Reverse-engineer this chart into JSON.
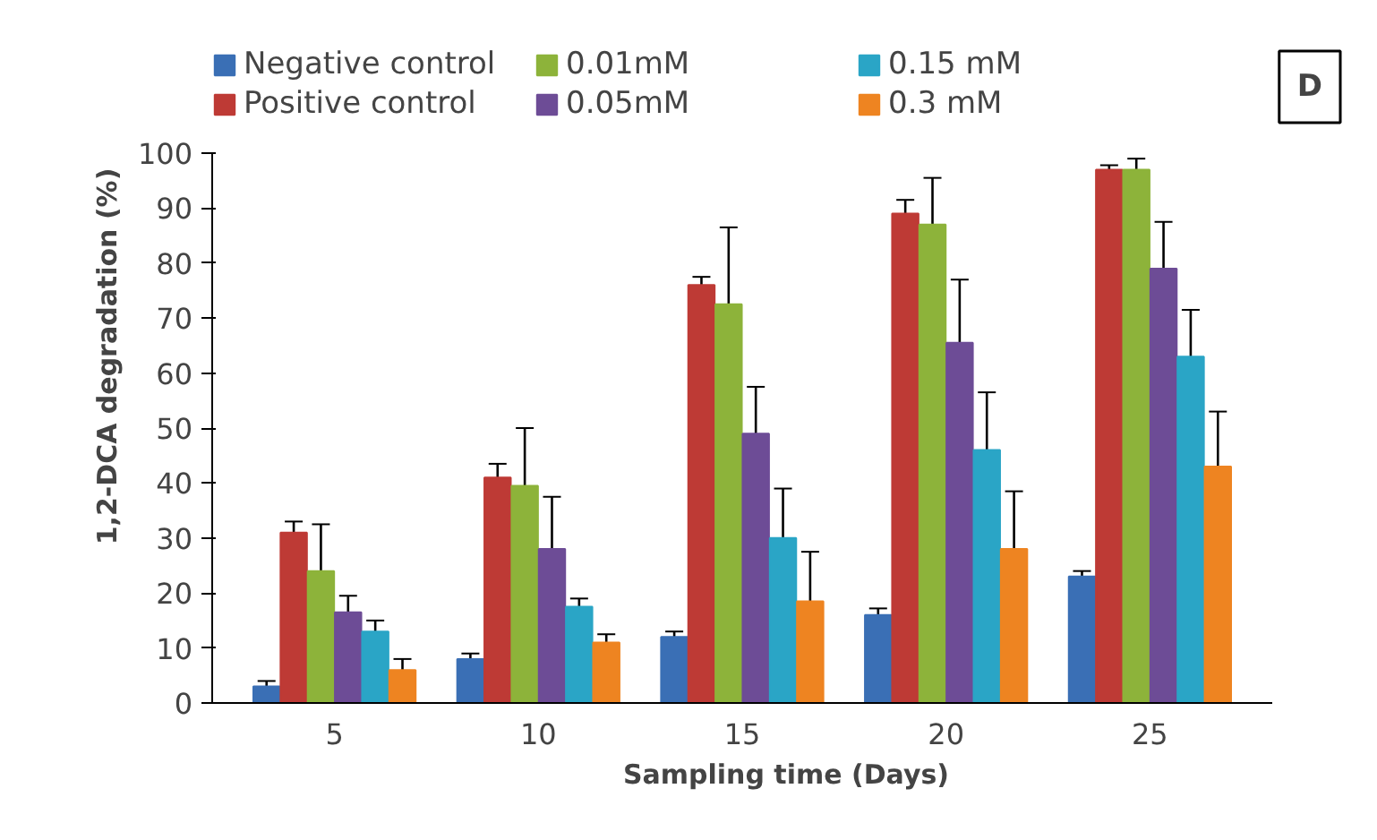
{
  "chart_data": {
    "type": "bar",
    "xlabel": "Sampling time (Days)",
    "ylabel": "1,2-DCA degradation (%)",
    "categories": [
      "5",
      "10",
      "15",
      "20",
      "25"
    ],
    "series": [
      {
        "name": "Negative control",
        "color": "#3a6fb5",
        "values": [
          3,
          8,
          12,
          16,
          23
        ],
        "errors": [
          1,
          1,
          1,
          1.2,
          1
        ]
      },
      {
        "name": "Positive control",
        "color": "#be3a35",
        "values": [
          31,
          41,
          76,
          89,
          97
        ],
        "errors": [
          2,
          2.5,
          1.5,
          2.5,
          0.8
        ]
      },
      {
        "name": "0.01mM",
        "color": "#8db33a",
        "values": [
          24,
          39.5,
          72.5,
          87,
          97
        ],
        "errors": [
          8.5,
          10.5,
          14,
          8.5,
          2
        ]
      },
      {
        "name": "0.05mM",
        "color": "#6d4c96",
        "values": [
          16.5,
          28,
          49,
          65.5,
          79
        ],
        "errors": [
          3,
          9.5,
          8.5,
          11.5,
          8.5
        ]
      },
      {
        "name": "0.15 mM",
        "color": "#2aa5c6",
        "values": [
          13,
          17.5,
          30,
          46,
          63
        ],
        "errors": [
          2,
          1.5,
          9,
          10.5,
          8.5
        ]
      },
      {
        "name": "0.3 mM",
        "color": "#ee8421",
        "values": [
          6,
          11,
          18.5,
          28,
          43
        ],
        "errors": [
          2,
          1.5,
          9,
          10.5,
          10
        ]
      }
    ],
    "ylim": [
      0,
      100
    ],
    "yticks": [
      0,
      10,
      20,
      30,
      40,
      50,
      60,
      70,
      80,
      90,
      100
    ],
    "grid": false,
    "legend": "top",
    "annotations": [
      "D"
    ]
  }
}
